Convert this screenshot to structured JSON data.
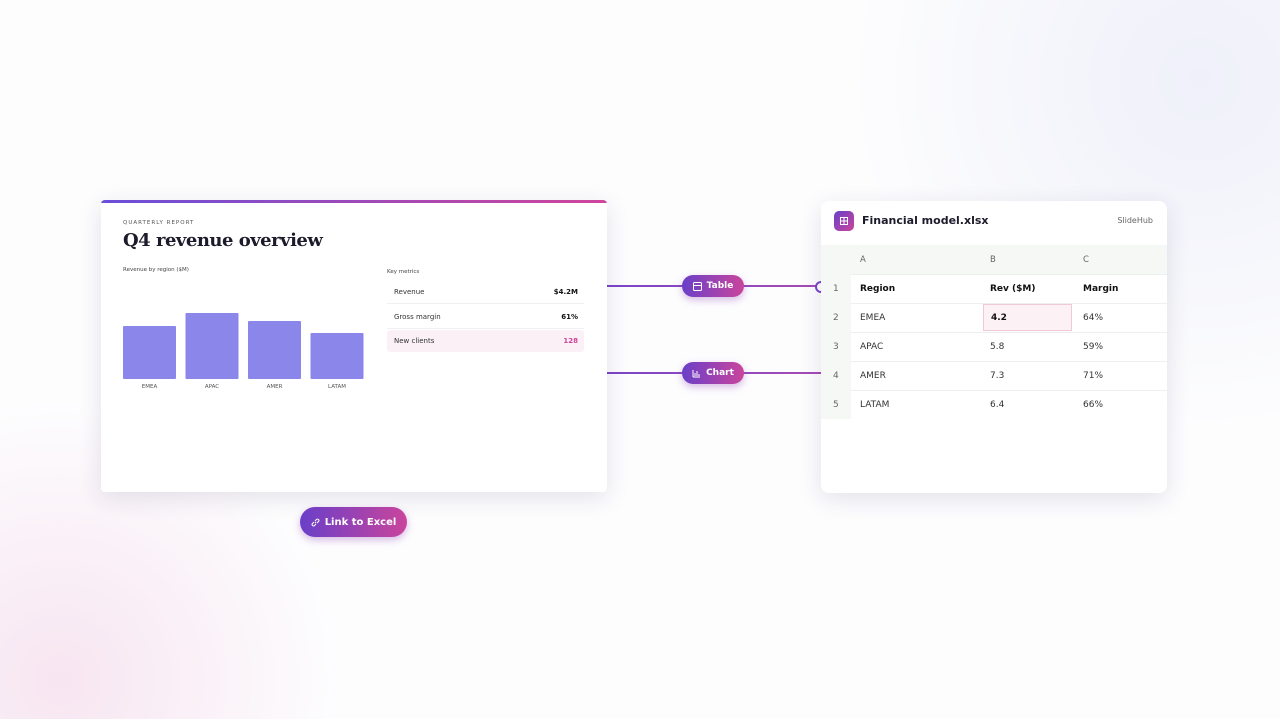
{
  "slide": {
    "eyebrow": "QUARTERLY REPORT",
    "title": "Q4 revenue overview",
    "chart_data": {
      "type": "bar",
      "title": "Revenue by region ($M)",
      "categories": [
        "EMEA",
        "APAC",
        "AMER",
        "LATAM"
      ],
      "values": [
        5.3,
        6.6,
        5.8,
        4.6
      ],
      "color": "#8a86ea"
    },
    "metrics": {
      "title": "Key metrics",
      "rows": [
        [
          "Revenue",
          "$4.2M"
        ],
        [
          "Gross margin",
          "61%"
        ],
        [
          "New clients",
          "128"
        ]
      ]
    }
  },
  "connectors": [
    "Table",
    "Chart"
  ],
  "button": "Link to Excel",
  "sheet": {
    "filename": "Financial model.xlsx",
    "brand": "SlideHub",
    "columns": [
      "A",
      "B",
      "C"
    ],
    "rows": [
      [
        "1",
        "Region",
        "Rev ($M)",
        "Margin"
      ],
      [
        "2",
        "EMEA",
        "4.2",
        "64%"
      ],
      [
        "3",
        "APAC",
        "5.8",
        "59%"
      ],
      [
        "4",
        "AMER",
        "7.3",
        "71%"
      ],
      [
        "5",
        "LATAM",
        "6.4",
        "66%"
      ]
    ]
  }
}
